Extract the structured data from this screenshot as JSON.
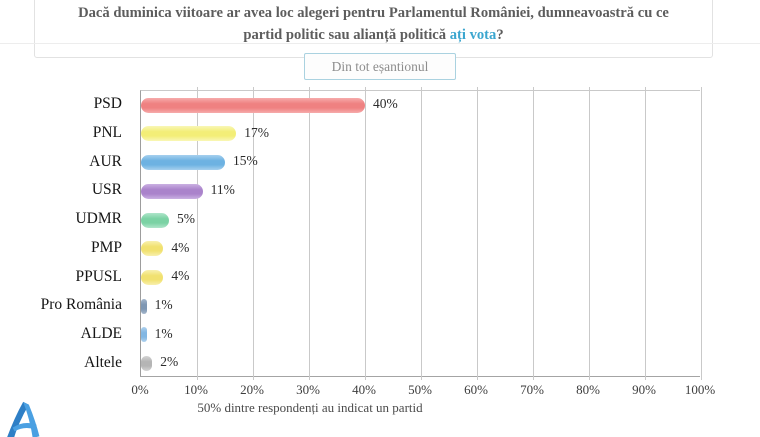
{
  "header": {
    "title_prefix": "Dacă duminica viitoare ar avea loc alegeri pentru Parlamentul României, dumneavoastră cu ce partid politic sau alianță politică ",
    "title_link": "ați vota",
    "title_suffix": "?",
    "link_color": "#3ba6cf"
  },
  "controls": {
    "sample_button_label": "Din tot eșantionul"
  },
  "chart_data": {
    "type": "bar",
    "orientation": "horizontal",
    "categories": [
      "PSD",
      "PNL",
      "AUR",
      "USR",
      "UDMR",
      "PMP",
      "PPUSL",
      "Pro România",
      "ALDE",
      "Altele"
    ],
    "values": [
      40,
      17,
      15,
      11,
      5,
      4,
      4,
      1,
      1,
      2
    ],
    "value_labels": [
      "40%",
      "17%",
      "15%",
      "11%",
      "5%",
      "4%",
      "4%",
      "1%",
      "1%",
      "2%"
    ],
    "bar_colors": [
      "#ef8181",
      "#f3ee77",
      "#6db2e2",
      "#aa83cb",
      "#7bd2a4",
      "#f1e170",
      "#f1e170",
      "#7f97b3",
      "#82b7e3",
      "#b5b5b5"
    ],
    "bar_colors_light": [
      "#f6abab",
      "#f9f7b6",
      "#a6d0ee",
      "#cab0e2",
      "#afe5ca",
      "#f8f0ae",
      "#f8f0ae",
      "#a4b6cb",
      "#afd1ee",
      "#d4d4d4"
    ],
    "x_ticks": [
      "0%",
      "10%",
      "20%",
      "30%",
      "40%",
      "50%",
      "60%",
      "70%",
      "80%",
      "90%",
      "100%"
    ],
    "xlim": [
      0,
      100
    ],
    "grid": true,
    "xlabel": "50% dintre respondenți au indicat un partid",
    "title": ""
  },
  "footer": {
    "logo_name": "avangarde-a-logo",
    "logo_color_dark": "#2e7fc6",
    "logo_color_light": "#4aa0e2"
  }
}
